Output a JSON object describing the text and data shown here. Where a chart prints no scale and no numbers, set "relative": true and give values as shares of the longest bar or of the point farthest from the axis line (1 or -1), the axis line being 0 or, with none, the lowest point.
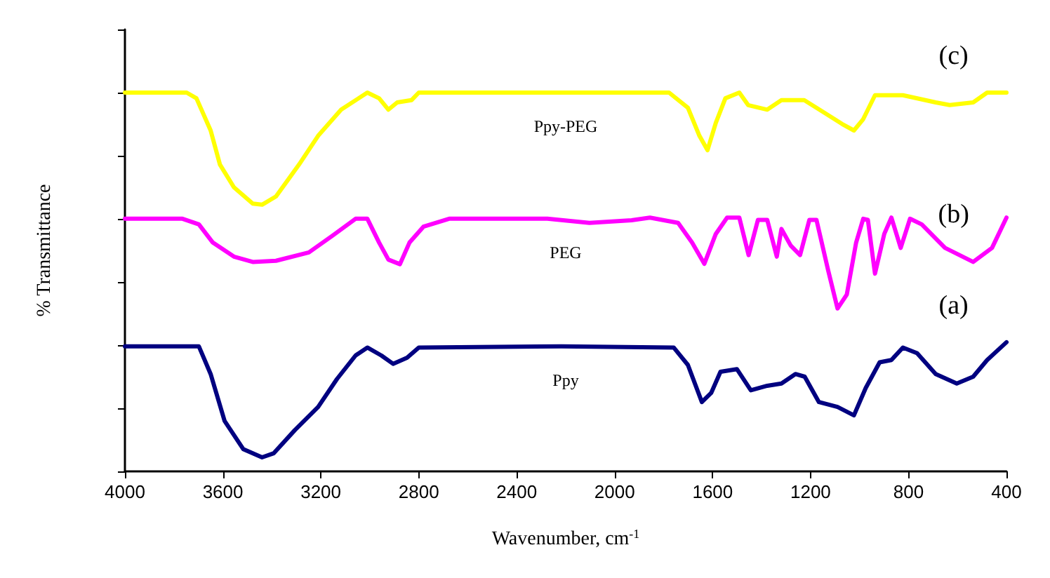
{
  "chart_data": {
    "type": "line",
    "relative": true,
    "xlabel": "Wavenumber, cm$^{-1}$",
    "ylabel": "% Transmittance",
    "xlim": [
      4000,
      400
    ],
    "xticks": [
      4000,
      3600,
      3200,
      2800,
      2400,
      2000,
      1600,
      1200,
      800,
      400
    ],
    "tick_labels": "x",
    "grid": false,
    "legend": false,
    "marker": "none",
    "line_style": "solid",
    "series": [
      {
        "name": "Ppy-PEG",
        "color": "#ffff00",
        "x": [
          4000,
          3748,
          3708,
          3650,
          3612,
          3555,
          3478,
          3440,
          3383,
          3289,
          3211,
          3117,
          3010,
          2962,
          2924,
          2888,
          2830,
          2800,
          2217,
          1778,
          1701,
          1654,
          1621,
          1587,
          1548,
          1491,
          1455,
          1377,
          1319,
          1226,
          1147,
          1071,
          1023,
          985,
          937,
          823,
          689,
          632,
          536,
          479,
          400
        ],
        "values": [
          1.0,
          1.0,
          0.985,
          0.9,
          0.81,
          0.75,
          0.707,
          0.704,
          0.726,
          0.81,
          0.886,
          0.955,
          1.0,
          0.985,
          0.955,
          0.974,
          0.98,
          1.0,
          1.0,
          1.0,
          0.96,
          0.886,
          0.848,
          0.92,
          0.985,
          1.0,
          0.967,
          0.955,
          0.98,
          0.98,
          0.948,
          0.917,
          0.9,
          0.93,
          0.993,
          0.993,
          0.974,
          0.967,
          0.974,
          1.0,
          1.0
        ]
      },
      {
        "name": "PEG",
        "color": "#ff00ff",
        "x": [
          4000,
          3765,
          3698,
          3641,
          3555,
          3478,
          3383,
          3249,
          3153,
          3058,
          3010,
          2962,
          2924,
          2877,
          2838,
          2781,
          2676,
          2275,
          2103,
          1931,
          1856,
          1741,
          1684,
          1634,
          1587,
          1541,
          1491,
          1453,
          1415,
          1377,
          1338,
          1319,
          1281,
          1243,
          1205,
          1176,
          1128,
          1090,
          1052,
          1014,
          985,
          966,
          937,
          899,
          870,
          832,
          794,
          746,
          651,
          536,
          459,
          400
        ],
        "values": [
          0.667,
          0.667,
          0.652,
          0.604,
          0.567,
          0.553,
          0.556,
          0.578,
          0.622,
          0.667,
          0.667,
          0.604,
          0.559,
          0.547,
          0.604,
          0.646,
          0.667,
          0.667,
          0.656,
          0.663,
          0.67,
          0.656,
          0.604,
          0.548,
          0.627,
          0.67,
          0.67,
          0.571,
          0.664,
          0.664,
          0.567,
          0.64,
          0.596,
          0.571,
          0.664,
          0.664,
          0.53,
          0.43,
          0.467,
          0.604,
          0.667,
          0.664,
          0.522,
          0.627,
          0.67,
          0.59,
          0.667,
          0.652,
          0.59,
          0.553,
          0.59,
          0.67
        ]
      },
      {
        "name": "Ppy",
        "color": "#000080",
        "x": [
          4000,
          3698,
          3650,
          3593,
          3517,
          3440,
          3392,
          3306,
          3211,
          3134,
          3058,
          3010,
          2953,
          2905,
          2848,
          2800,
          2217,
          1759,
          1701,
          1644,
          1606,
          1568,
          1501,
          1444,
          1377,
          1319,
          1262,
          1224,
          1166,
          1090,
          1023,
          975,
          918,
          870,
          823,
          765,
          689,
          603,
          536,
          479,
          400
        ],
        "values": [
          0.33,
          0.33,
          0.257,
          0.133,
          0.059,
          0.037,
          0.048,
          0.109,
          0.17,
          0.244,
          0.306,
          0.327,
          0.306,
          0.284,
          0.3,
          0.327,
          0.33,
          0.327,
          0.281,
          0.183,
          0.207,
          0.263,
          0.27,
          0.214,
          0.226,
          0.232,
          0.257,
          0.25,
          0.183,
          0.17,
          0.148,
          0.22,
          0.288,
          0.294,
          0.327,
          0.312,
          0.257,
          0.232,
          0.25,
          0.294,
          0.341
        ]
      }
    ],
    "annotations": [
      "(c)",
      "(b)",
      "(a)"
    ]
  }
}
